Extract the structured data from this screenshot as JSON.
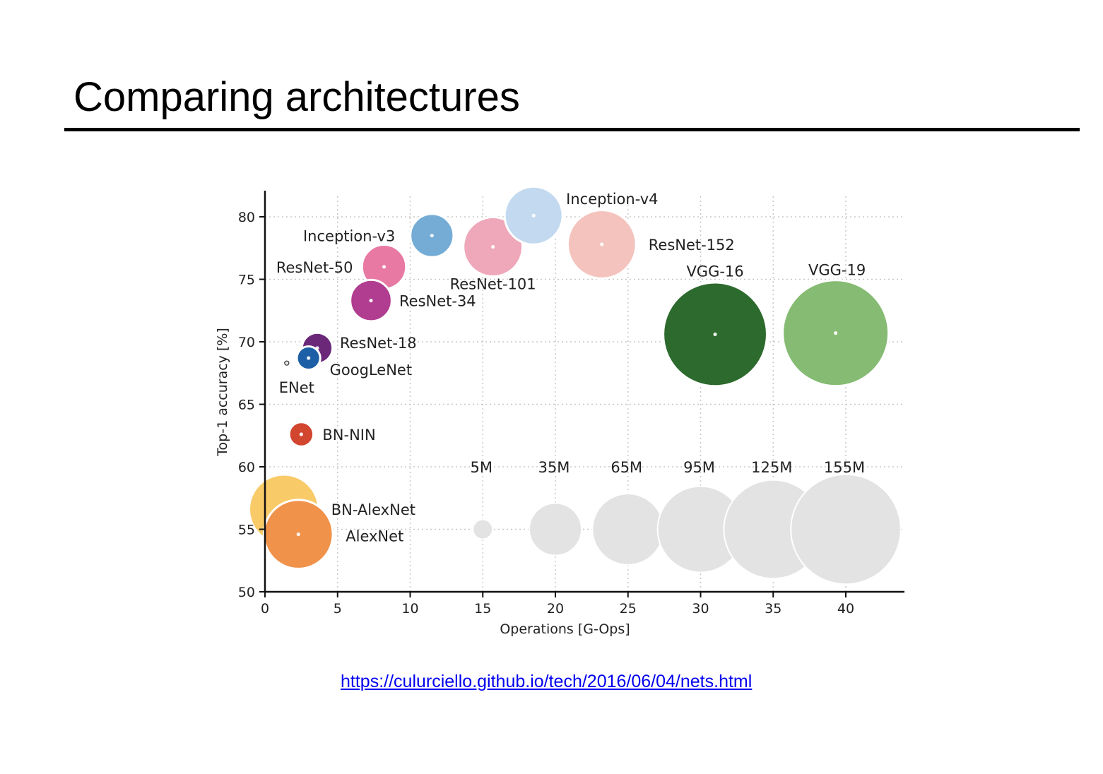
{
  "slide": {
    "title": "Comparing architectures",
    "source_url": "https://culurciello.github.io/tech/2016/06/04/nets.html"
  },
  "chart_data": {
    "type": "scatter",
    "variant": "bubble",
    "xlabel": "Operations [G-Ops]",
    "ylabel": "Top-1 accuracy [%]",
    "xlim": [
      0,
      44
    ],
    "ylim": [
      50,
      82
    ],
    "xticks": [
      0,
      5,
      10,
      15,
      20,
      25,
      30,
      35,
      40
    ],
    "yticks": [
      50,
      55,
      60,
      65,
      70,
      75,
      80
    ],
    "grid": true,
    "points": [
      {
        "label": "BN-AlexNet",
        "x": 1.3,
        "y": 56.6,
        "params_m": 62,
        "color": "#f9ca68"
      },
      {
        "label": "AlexNet",
        "x": 2.3,
        "y": 54.6,
        "params_m": 61,
        "color": "#f0924a"
      },
      {
        "label": "BN-NIN",
        "x": 2.5,
        "y": 62.6,
        "params_m": 7.6,
        "color": "#d2452f"
      },
      {
        "label": "ENet",
        "x": 1.5,
        "y": 68.3,
        "params_m": 0.37,
        "color": "#000000"
      },
      {
        "label": "GoogLeNet",
        "x": 3.0,
        "y": 68.7,
        "params_m": 7,
        "color": "#1d5fa6"
      },
      {
        "label": "ResNet-18",
        "x": 3.6,
        "y": 69.5,
        "params_m": 12,
        "color": "#6b2879"
      },
      {
        "label": "ResNet-34",
        "x": 7.3,
        "y": 73.3,
        "params_m": 22,
        "color": "#b03d8f"
      },
      {
        "label": "ResNet-50",
        "x": 8.2,
        "y": 76.0,
        "params_m": 25,
        "color": "#e779a3"
      },
      {
        "label": "Inception-v3",
        "x": 11.5,
        "y": 78.5,
        "params_m": 24,
        "color": "#74acd6"
      },
      {
        "label": "ResNet-101",
        "x": 15.7,
        "y": 77.6,
        "params_m": 45,
        "color": "#eea8ba"
      },
      {
        "label": "Inception-v4",
        "x": 18.5,
        "y": 80.1,
        "params_m": 43,
        "color": "#c2d9ef"
      },
      {
        "label": "ResNet-152",
        "x": 23.2,
        "y": 77.8,
        "params_m": 60,
        "color": "#f4c3bd"
      },
      {
        "label": "VGG-16",
        "x": 31.0,
        "y": 70.6,
        "params_m": 138,
        "color": "#2d6a2d"
      },
      {
        "label": "VGG-19",
        "x": 39.3,
        "y": 70.7,
        "params_m": 144,
        "color": "#85bb72"
      }
    ],
    "size_legend": {
      "y": 55,
      "color": "#e3e3e3",
      "entries": [
        {
          "label": "5M",
          "x": 15,
          "params_m": 5
        },
        {
          "label": "35M",
          "x": 20,
          "params_m": 35
        },
        {
          "label": "65M",
          "x": 25,
          "params_m": 65
        },
        {
          "label": "95M",
          "x": 30,
          "params_m": 95
        },
        {
          "label": "125M",
          "x": 35,
          "params_m": 125
        },
        {
          "label": "155M",
          "x": 40,
          "params_m": 155
        }
      ]
    }
  }
}
